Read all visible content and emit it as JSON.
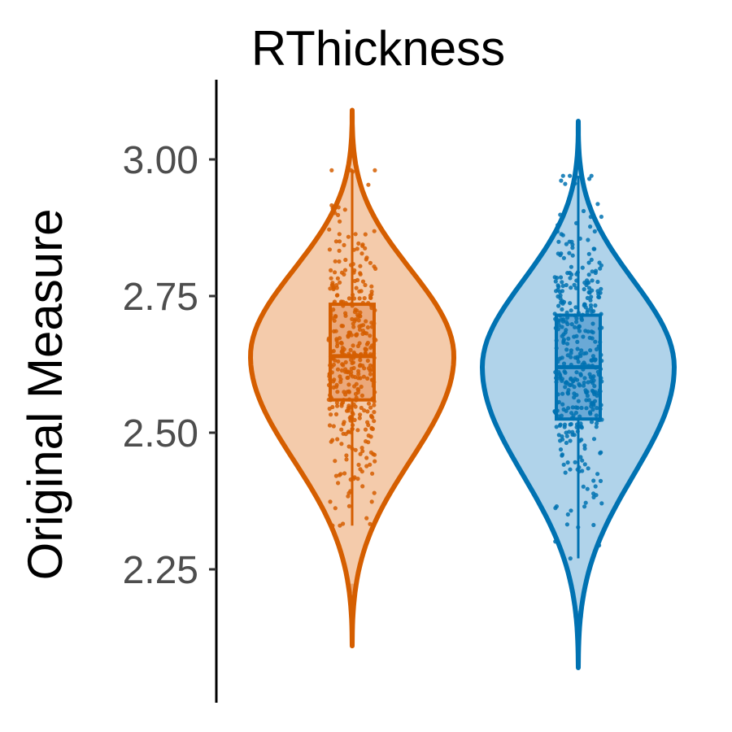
{
  "chart_data": {
    "type": "violin",
    "title": "RThickness",
    "ylabel": "Original Measure",
    "xlabel": "",
    "ylim": [
      2.1,
      3.13
    ],
    "yticks": [
      {
        "value": 2.25,
        "label": "2.25"
      },
      {
        "value": 2.5,
        "label": "2.50"
      },
      {
        "value": 2.75,
        "label": "2.75"
      },
      {
        "value": 3.0,
        "label": "3.00"
      }
    ],
    "grid": false,
    "legend": "none",
    "series": [
      {
        "color": "#d55e00",
        "fill": "#f4cbab",
        "box_fill": "#eba87a",
        "min": 2.11,
        "max": 3.09,
        "mode": 2.64,
        "q1": 2.56,
        "median": 2.64,
        "q3": 2.735,
        "whisker_low": 2.33,
        "whisker_high": 2.98,
        "outliers": [
          2.215
        ],
        "n_points": 400
      },
      {
        "color": "#0072b2",
        "fill": "#b0d3ea",
        "box_fill": "#6aa9d6",
        "min": 2.07,
        "max": 3.07,
        "mode": 2.62,
        "q1": 2.525,
        "median": 2.62,
        "q3": 2.715,
        "whisker_low": 2.27,
        "whisker_high": 2.97,
        "outliers": [
          2.165
        ],
        "n_points": 400
      }
    ]
  }
}
